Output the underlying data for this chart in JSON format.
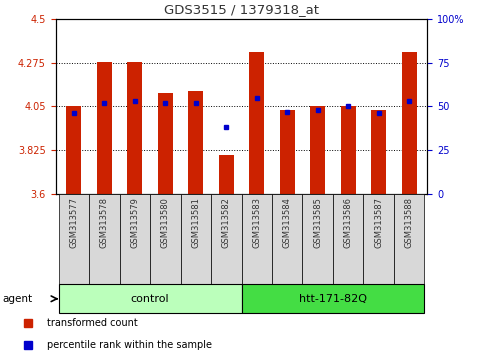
{
  "title": "GDS3515 / 1379318_at",
  "samples": [
    "GSM313577",
    "GSM313578",
    "GSM313579",
    "GSM313580",
    "GSM313581",
    "GSM313582",
    "GSM313583",
    "GSM313584",
    "GSM313585",
    "GSM313586",
    "GSM313587",
    "GSM313588"
  ],
  "red_values": [
    4.05,
    4.28,
    4.28,
    4.12,
    4.13,
    3.8,
    4.33,
    4.03,
    4.05,
    4.05,
    4.03,
    4.33
  ],
  "blue_values": [
    46,
    52,
    53,
    52,
    52,
    38,
    55,
    47,
    48,
    50,
    46,
    53
  ],
  "ylim_left": [
    3.6,
    4.5
  ],
  "ylim_right": [
    0,
    100
  ],
  "yticks_left": [
    3.6,
    3.825,
    4.05,
    4.275,
    4.5
  ],
  "yticks_right": [
    0,
    25,
    50,
    75,
    100
  ],
  "ytick_labels_left": [
    "3.6",
    "3.825",
    "4.05",
    "4.275",
    "4.5"
  ],
  "ytick_labels_right": [
    "0",
    "25",
    "50",
    "75",
    "100%"
  ],
  "hlines": [
    3.825,
    4.05,
    4.275
  ],
  "group1_label": "control",
  "group2_label": "htt-171-82Q",
  "group1_indices": [
    0,
    1,
    2,
    3,
    4,
    5
  ],
  "group2_indices": [
    6,
    7,
    8,
    9,
    10,
    11
  ],
  "agent_label": "agent",
  "legend1": "transformed count",
  "legend2": "percentile rank within the sample",
  "bar_color": "#cc2200",
  "dot_color": "#0000cc",
  "group1_bg": "#bbffbb",
  "group2_bg": "#44dd44",
  "title_color": "#333333",
  "tick_color_left": "#cc2200",
  "tick_color_right": "#0000cc",
  "bar_width": 0.5,
  "label_bg": "#d8d8d8"
}
